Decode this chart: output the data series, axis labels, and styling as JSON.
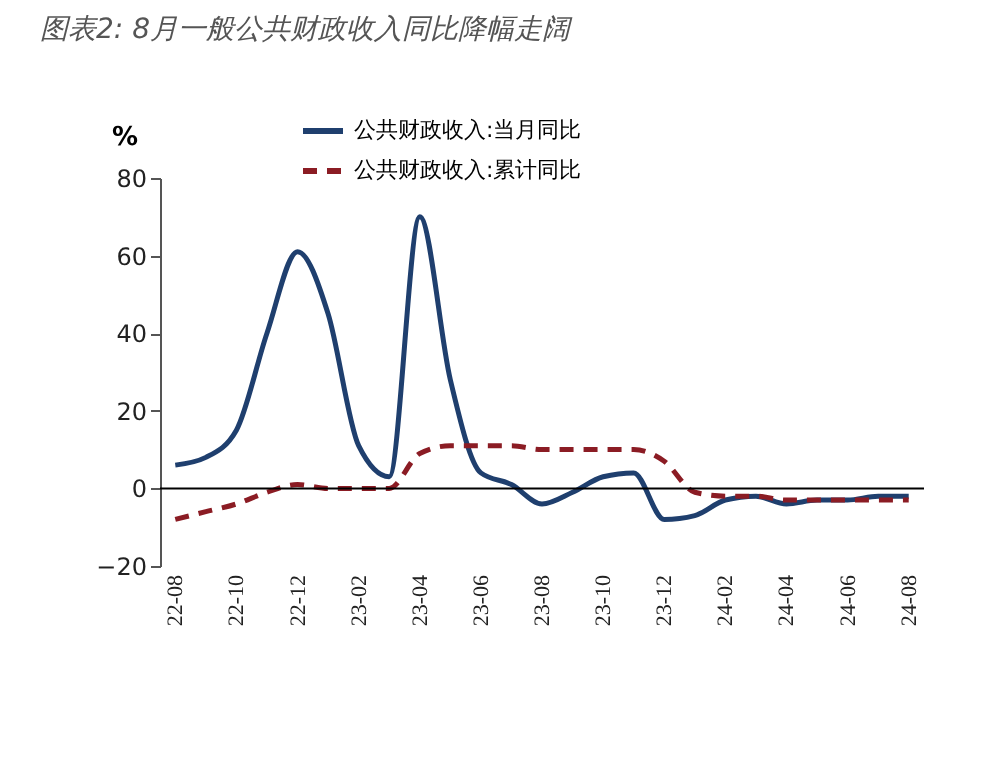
{
  "chart_data": {
    "type": "line",
    "title": "图表2: 8月一般公共财政收入同比降幅走阔",
    "ylabel": "%",
    "categories": [
      "22-08",
      null,
      "22-10",
      null,
      "22-12",
      null,
      "23-02",
      null,
      "23-04",
      null,
      "23-06",
      null,
      "23-08",
      null,
      "23-10",
      null,
      "23-12",
      null,
      "24-02",
      null,
      "24-04",
      null,
      "24-06",
      null,
      "24-08"
    ],
    "series": [
      {
        "name": "公共财政收入:当月同比",
        "color": "#1f3f6e",
        "line_style": "solid",
        "values": [
          6,
          8,
          15,
          40,
          61,
          45,
          11,
          3,
          70,
          28,
          4,
          1,
          -4,
          -1,
          3,
          4,
          -8,
          -7,
          -3,
          -2,
          -4,
          -3,
          -3,
          -2,
          -2
        ]
      },
      {
        "name": "公共财政收入:累计同比",
        "color": "#8b1c24",
        "line_style": "dashed",
        "values": [
          -8,
          -6,
          -4,
          -1,
          1,
          0,
          0,
          0,
          9,
          11,
          11,
          11,
          10,
          10,
          10,
          10,
          7,
          -1,
          -2,
          -2,
          -3,
          -3,
          -3,
          -3,
          -3
        ]
      }
    ],
    "ylim": [
      -20,
      80
    ],
    "yticks": [
      -20,
      0,
      20,
      40,
      60,
      80
    ],
    "ref_lines": [
      {
        "axis": "y",
        "value": 0,
        "color": "#000000"
      }
    ],
    "grid": false,
    "legend": "top"
  }
}
